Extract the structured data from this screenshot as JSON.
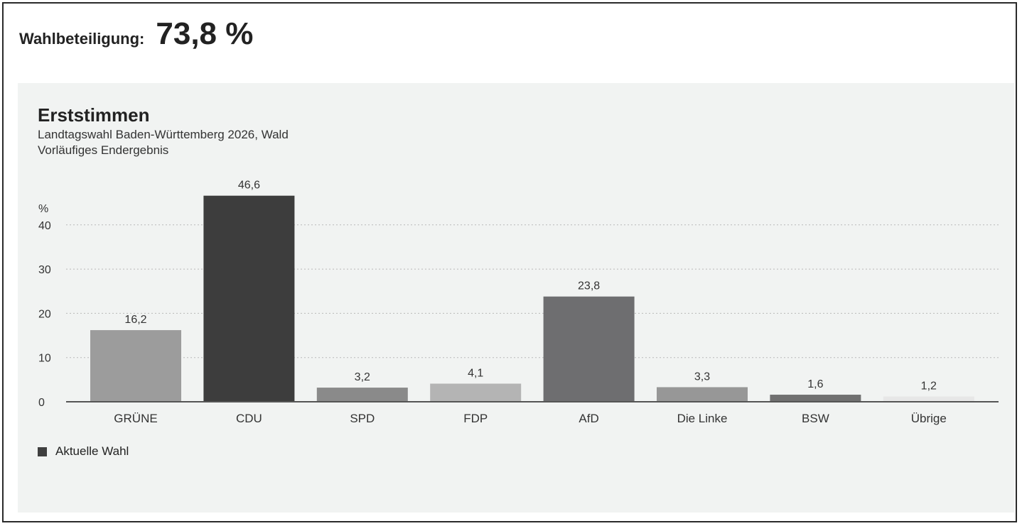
{
  "turnout": {
    "label": "Wahlbeteiligung:",
    "value": "73,8 %"
  },
  "chart_data": {
    "type": "bar",
    "title": "Erststimmen",
    "subtitle_lines": [
      "Landtagswahl Baden-Württemberg 2026, Wald",
      "Vorläufiges Endergebnis"
    ],
    "ylabel": "%",
    "ylim": [
      0,
      50
    ],
    "yticks": [
      0,
      10,
      20,
      30,
      40
    ],
    "categories": [
      "GRÜNE",
      "CDU",
      "SPD",
      "FDP",
      "AfD",
      "Die Linke",
      "BSW",
      "Übrige"
    ],
    "values": [
      16.2,
      46.6,
      3.2,
      4.1,
      23.8,
      3.3,
      1.6,
      1.2
    ],
    "value_labels": [
      "16,2",
      "46,6",
      "3,2",
      "4,1",
      "23,8",
      "3,3",
      "1,6",
      "1,2"
    ],
    "colors": [
      "#9c9c9c",
      "#3d3d3d",
      "#8a8a8a",
      "#b4b4b4",
      "#6e6e70",
      "#979797",
      "#707070",
      "#e7e7e7"
    ],
    "grid": true,
    "legend": {
      "position": "bottom-left",
      "entries": [
        {
          "label": "Aktuelle Wahl",
          "color": "#3f3f3f"
        }
      ]
    }
  }
}
